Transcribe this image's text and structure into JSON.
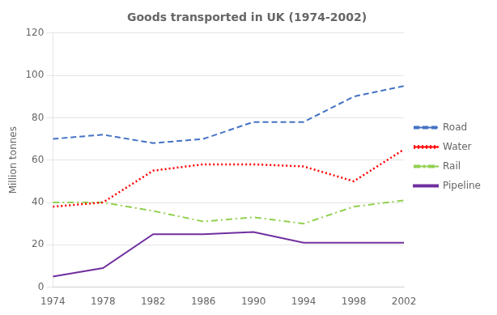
{
  "chart_data": {
    "type": "line",
    "title": "Goods transported in UK (1974-2002)",
    "y_label": "Million tonnes",
    "x": [
      1974,
      1978,
      1982,
      1986,
      1990,
      1994,
      1998,
      2002
    ],
    "xlim": [
      1974,
      2002
    ],
    "xticks": [
      1974,
      1978,
      1982,
      1986,
      1990,
      1994,
      1998,
      2002
    ],
    "ylim": [
      0,
      120
    ],
    "yticks": [
      0,
      20,
      40,
      60,
      80,
      100,
      120
    ],
    "grid": "y",
    "legend": "right",
    "series": [
      {
        "name": "Road",
        "color": "#4472C4",
        "line_style": "dashed",
        "values": [
          70,
          72,
          68,
          70,
          78,
          78,
          90,
          95
        ]
      },
      {
        "name": "Water",
        "color": "#FF0000",
        "line_style": "dotted",
        "values": [
          38,
          40,
          55,
          58,
          58,
          57,
          50,
          65
        ]
      },
      {
        "name": "Rail",
        "color": "#92D050",
        "line_style": "dashdot",
        "values": [
          40,
          40,
          36,
          31,
          33,
          30,
          38,
          41
        ]
      },
      {
        "name": "Pipeline",
        "color": "#7030A0",
        "line_style": "solid",
        "values": [
          5,
          9,
          25,
          25,
          26,
          21,
          21,
          21
        ]
      }
    ]
  }
}
